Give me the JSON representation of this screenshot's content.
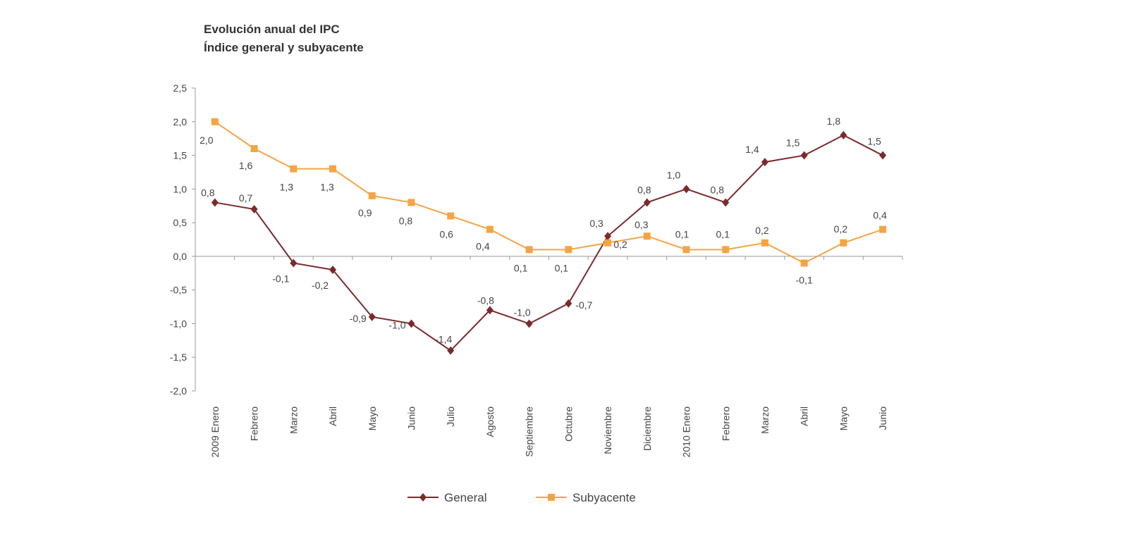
{
  "chart_data": {
    "type": "line",
    "title": "Evolución anual del IPC",
    "subtitle": "Índice general y subyacente",
    "categories": [
      "2009 Enero",
      "Febrero",
      "Marzo",
      "Abril",
      "Mayo",
      "Junio",
      "Julio",
      "Agosto",
      "Septiembre",
      "Octubre",
      "Noviembre",
      "Diciembre",
      "2010 Enero",
      "Febrero",
      "Marzo",
      "Abril",
      "Mayo",
      "Junio"
    ],
    "series": [
      {
        "name": "General",
        "color": "#7b2a2c",
        "marker": "diamond",
        "values": [
          0.8,
          0.7,
          -0.1,
          -0.2,
          -0.9,
          -1.0,
          -1.4,
          -0.8,
          -1.0,
          -0.7,
          0.3,
          0.8,
          1.0,
          0.8,
          1.4,
          1.5,
          1.8,
          1.5
        ],
        "labels": [
          "0,8",
          "0,7",
          "-0,1",
          "-0,2",
          "-0,9",
          "-1,0",
          "-1,4",
          "-0,8",
          "-1,0",
          "-0,7",
          "0,3",
          "0,8",
          "1,0",
          "0,8",
          "1,4",
          "1,5",
          "1,8",
          "1,5"
        ]
      },
      {
        "name": "Subyacente",
        "color": "#f5a443",
        "marker": "square",
        "values": [
          2.0,
          1.6,
          1.3,
          1.3,
          0.9,
          0.8,
          0.6,
          0.4,
          0.1,
          0.1,
          0.2,
          0.3,
          0.1,
          0.1,
          0.2,
          -0.1,
          0.2,
          0.4
        ],
        "labels": [
          "2,0",
          "1,6",
          "1,3",
          "1,3",
          "0,9",
          "0,8",
          "0,6",
          "0,4",
          "0,1",
          "0,1",
          "0,2",
          "0,3",
          "0,1",
          "0,1",
          "0,2",
          "-0,1",
          "0,2",
          "0,4"
        ]
      }
    ],
    "ylim": [
      -2.0,
      2.5
    ],
    "yticks": [
      "-2,0",
      "-1,5",
      "-1,0",
      "-0,5",
      "0,0",
      "0,5",
      "1,0",
      "1,5",
      "2,0",
      "2,5"
    ],
    "ytick_values": [
      -2.0,
      -1.5,
      -1.0,
      -0.5,
      0.0,
      0.5,
      1.0,
      1.5,
      2.0,
      2.5
    ],
    "grid": false,
    "legend": "bottom"
  }
}
